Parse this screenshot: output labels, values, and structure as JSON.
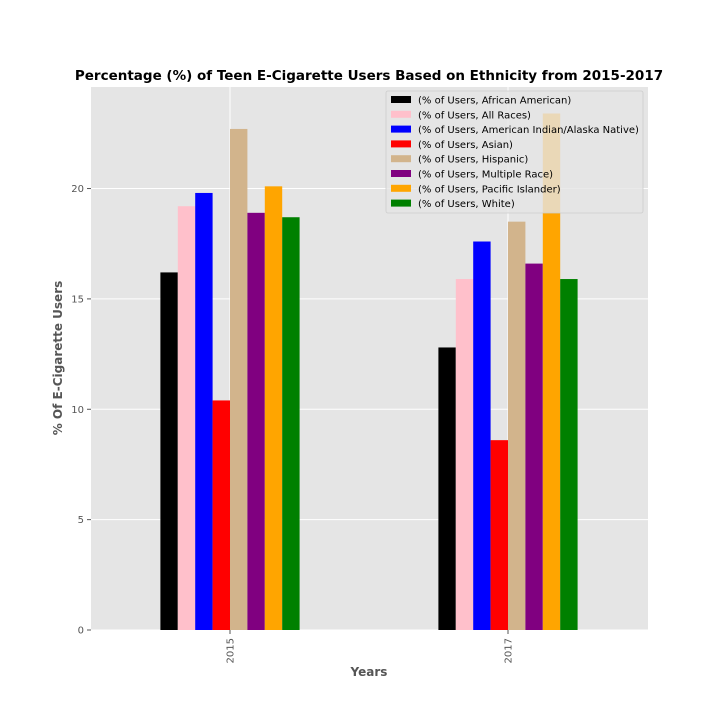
{
  "chart_data": {
    "type": "bar",
    "title": "Percentage (%) of Teen E-Cigarette Users Based on Ethnicity from 2015-2017",
    "xlabel": "Years",
    "ylabel": "% Of E-Cigarette Users",
    "categories": [
      "2015",
      "2017"
    ],
    "ylim": [
      0,
      24.6
    ],
    "yticks": [
      0,
      5,
      10,
      15,
      20
    ],
    "grid": true,
    "legend_position": "top-right",
    "background": "#e5e5e5",
    "series": [
      {
        "name": "(% of Users, African American)",
        "color": "#000000",
        "values": [
          16.2,
          12.8
        ]
      },
      {
        "name": "(% of Users, All Races)",
        "color": "#ffc0cb",
        "values": [
          19.2,
          15.9
        ]
      },
      {
        "name": "(% of Users, American Indian/Alaska Native)",
        "color": "#0000ff",
        "values": [
          19.8,
          17.6
        ]
      },
      {
        "name": "(% of Users, Asian)",
        "color": "#ff0000",
        "values": [
          10.4,
          8.6
        ]
      },
      {
        "name": "(% of Users, Hispanic)",
        "color": "#d2b48c",
        "values": [
          22.7,
          18.5
        ]
      },
      {
        "name": "(% of Users, Multiple Race)",
        "color": "#800080",
        "values": [
          18.9,
          16.6
        ]
      },
      {
        "name": "(% of Users, Pacific Islander)",
        "color": "#ffa500",
        "values": [
          20.1,
          23.4
        ]
      },
      {
        "name": "(% of Users, White)",
        "color": "#008000",
        "values": [
          18.7,
          15.9
        ]
      }
    ]
  }
}
